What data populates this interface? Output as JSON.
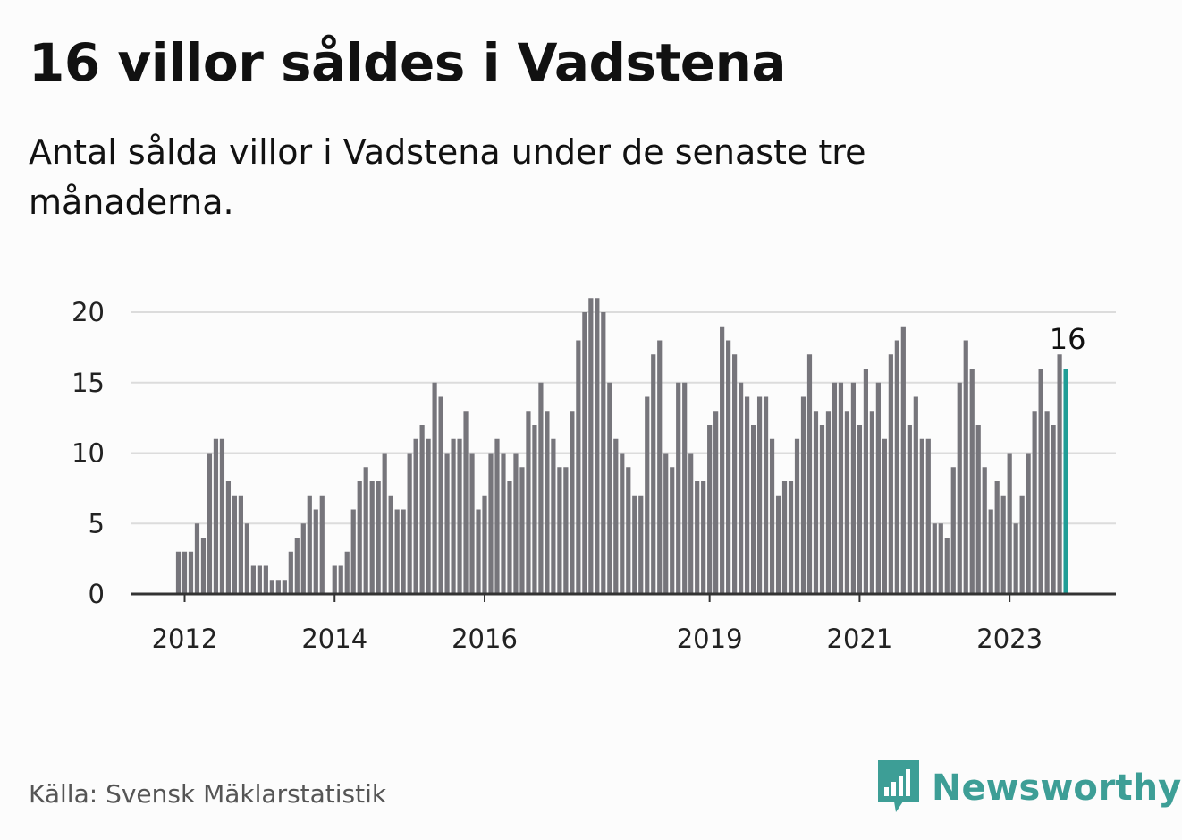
{
  "title": "16 villor såldes i Vadstena",
  "subtitle": "Antal sålda villor i Vadstena under de senaste tre månaderna.",
  "source": "Källa: Svensk Mäklarstatistik",
  "brand": {
    "name": "Newsworthy",
    "icon": "newsworthy-logo-icon"
  },
  "colors": {
    "bar": "#76757b",
    "highlight": "#1f9d96",
    "grid": "#dcdcdc",
    "axis": "#333333",
    "brand": "#3d9e96"
  },
  "chart_data": {
    "type": "bar",
    "title": "16 villor såldes i Vadstena",
    "subtitle": "Antal sålda villor i Vadstena under de senaste tre månaderna.",
    "xlabel": "",
    "ylabel": "",
    "ylim": [
      0,
      22
    ],
    "yticks": [
      0,
      5,
      10,
      15,
      20
    ],
    "grid": true,
    "legend": "none",
    "x_tick_labels": [
      "2012",
      "2014",
      "2016",
      "2019",
      "2021",
      "2023"
    ],
    "x_tick_positions": [
      1,
      25,
      49,
      85,
      109,
      133
    ],
    "highlight_index": 142,
    "highlight_label": "16",
    "values": [
      3,
      3,
      3,
      5,
      4,
      10,
      11,
      11,
      8,
      7,
      7,
      5,
      2,
      2,
      2,
      1,
      1,
      1,
      3,
      4,
      5,
      7,
      6,
      7,
      0,
      2,
      2,
      3,
      6,
      8,
      9,
      8,
      8,
      10,
      7,
      6,
      6,
      10,
      11,
      12,
      11,
      15,
      14,
      10,
      11,
      11,
      13,
      10,
      6,
      7,
      10,
      11,
      10,
      8,
      10,
      9,
      13,
      12,
      15,
      13,
      11,
      9,
      9,
      13,
      18,
      20,
      21,
      21,
      20,
      15,
      11,
      10,
      9,
      7,
      7,
      14,
      17,
      18,
      10,
      9,
      15,
      15,
      10,
      8,
      8,
      12,
      13,
      19,
      18,
      17,
      15,
      14,
      12,
      14,
      14,
      11,
      7,
      8,
      8,
      11,
      14,
      17,
      13,
      12,
      13,
      15,
      15,
      13,
      15,
      12,
      16,
      13,
      15,
      11,
      17,
      18,
      19,
      12,
      14,
      11,
      11,
      5,
      5,
      4,
      9,
      15,
      18,
      16,
      12,
      9,
      6,
      8,
      7,
      10,
      5,
      7,
      10,
      13,
      16,
      13,
      12,
      17,
      16
    ]
  }
}
